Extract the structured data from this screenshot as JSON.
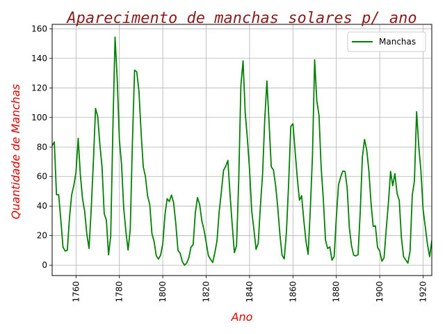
{
  "chart_data": {
    "type": "line",
    "title": "Aparecimento de manchas solares p/ ano",
    "xlabel": "Ano",
    "ylabel": "Quantidade de Manchas",
    "xlim": [
      1749,
      1924
    ],
    "ylim": [
      -7,
      163
    ],
    "xticks": [
      1760,
      1780,
      1800,
      1820,
      1840,
      1860,
      1880,
      1900,
      1920
    ],
    "yticks": [
      0,
      20,
      40,
      60,
      80,
      100,
      120,
      140,
      160
    ],
    "grid": true,
    "legend_position": "top-right",
    "colors": {
      "title": "#8b1a1a",
      "axis_labels": "#e00000",
      "series": "#008000"
    },
    "series": [
      {
        "name": "Manchas",
        "x": [
          1749,
          1750,
          1751,
          1752,
          1753,
          1754,
          1755,
          1756,
          1757,
          1758,
          1759,
          1760,
          1761,
          1762,
          1763,
          1764,
          1765,
          1766,
          1767,
          1768,
          1769,
          1770,
          1771,
          1772,
          1773,
          1774,
          1775,
          1776,
          1777,
          1778,
          1779,
          1780,
          1781,
          1782,
          1783,
          1784,
          1785,
          1786,
          1787,
          1788,
          1789,
          1790,
          1791,
          1792,
          1793,
          1794,
          1795,
          1796,
          1797,
          1798,
          1799,
          1800,
          1801,
          1802,
          1803,
          1804,
          1805,
          1806,
          1807,
          1808,
          1809,
          1810,
          1811,
          1812,
          1813,
          1814,
          1815,
          1816,
          1817,
          1818,
          1819,
          1820,
          1821,
          1822,
          1823,
          1824,
          1825,
          1826,
          1827,
          1828,
          1829,
          1830,
          1831,
          1832,
          1833,
          1834,
          1835,
          1836,
          1837,
          1838,
          1839,
          1840,
          1841,
          1842,
          1843,
          1844,
          1845,
          1846,
          1847,
          1848,
          1849,
          1850,
          1851,
          1852,
          1853,
          1854,
          1855,
          1856,
          1857,
          1858,
          1859,
          1860,
          1861,
          1862,
          1863,
          1864,
          1865,
          1866,
          1867,
          1868,
          1869,
          1870,
          1871,
          1872,
          1873,
          1874,
          1875,
          1876,
          1877,
          1878,
          1879,
          1880,
          1881,
          1882,
          1883,
          1884,
          1885,
          1886,
          1887,
          1888,
          1889,
          1890,
          1891,
          1892,
          1893,
          1894,
          1895,
          1896,
          1897,
          1898,
          1899,
          1900,
          1901,
          1902,
          1903,
          1904,
          1905,
          1906,
          1907,
          1908,
          1909,
          1910,
          1911,
          1912,
          1913,
          1914,
          1915,
          1916,
          1917,
          1918,
          1919,
          1920,
          1921,
          1922,
          1923,
          1924
        ],
        "y": [
          80.9,
          83.4,
          47.7,
          47.8,
          30.7,
          12.2,
          9.6,
          10.2,
          32.4,
          47.6,
          54.0,
          62.9,
          85.9,
          61.2,
          45.1,
          36.4,
          20.9,
          11.4,
          37.8,
          69.8,
          106.1,
          100.8,
          81.6,
          66.5,
          34.8,
          30.6,
          7.0,
          19.8,
          92.5,
          154.4,
          125.9,
          84.8,
          68.1,
          38.5,
          22.8,
          10.2,
          24.1,
          82.9,
          132.0,
          130.9,
          118.1,
          89.9,
          66.6,
          60.0,
          46.9,
          41.0,
          21.3,
          16.0,
          6.4,
          4.1,
          6.8,
          14.5,
          34.0,
          45.0,
          43.1,
          47.5,
          42.2,
          28.1,
          10.1,
          8.1,
          2.5,
          0.0,
          1.4,
          5.0,
          12.2,
          13.9,
          35.4,
          45.8,
          41.1,
          30.1,
          23.9,
          15.6,
          6.6,
          4.0,
          1.8,
          8.5,
          16.6,
          36.3,
          49.6,
          64.2,
          67.0,
          70.9,
          47.8,
          27.5,
          8.5,
          13.2,
          56.9,
          121.5,
          138.3,
          103.2,
          85.7,
          64.6,
          36.7,
          24.2,
          10.7,
          15.0,
          40.1,
          61.5,
          98.5,
          124.7,
          96.3,
          66.6,
          64.5,
          54.1,
          39.0,
          20.6,
          6.7,
          4.3,
          22.7,
          54.8,
          93.8,
          95.8,
          77.2,
          59.1,
          44.0,
          47.0,
          30.5,
          16.3,
          7.3,
          37.6,
          74.0,
          139.0,
          111.2,
          101.6,
          66.2,
          44.7,
          17.0,
          11.3,
          12.4,
          3.4,
          6.0,
          32.3,
          54.3,
          59.7,
          63.7,
          63.5,
          52.2,
          25.4,
          13.1,
          6.8,
          6.3,
          7.1,
          35.6,
          73.0,
          85.1,
          78.0,
          64.0,
          41.8,
          26.2,
          26.7,
          12.1,
          9.5,
          2.7,
          5.0,
          24.4,
          42.0,
          63.5,
          53.8,
          62.0,
          48.5,
          43.9,
          18.6,
          5.7,
          3.6,
          1.4,
          9.6,
          47.4,
          57.1,
          103.9,
          80.6,
          63.6,
          37.6,
          26.1,
          14.2,
          5.8,
          16.7
        ]
      }
    ]
  }
}
